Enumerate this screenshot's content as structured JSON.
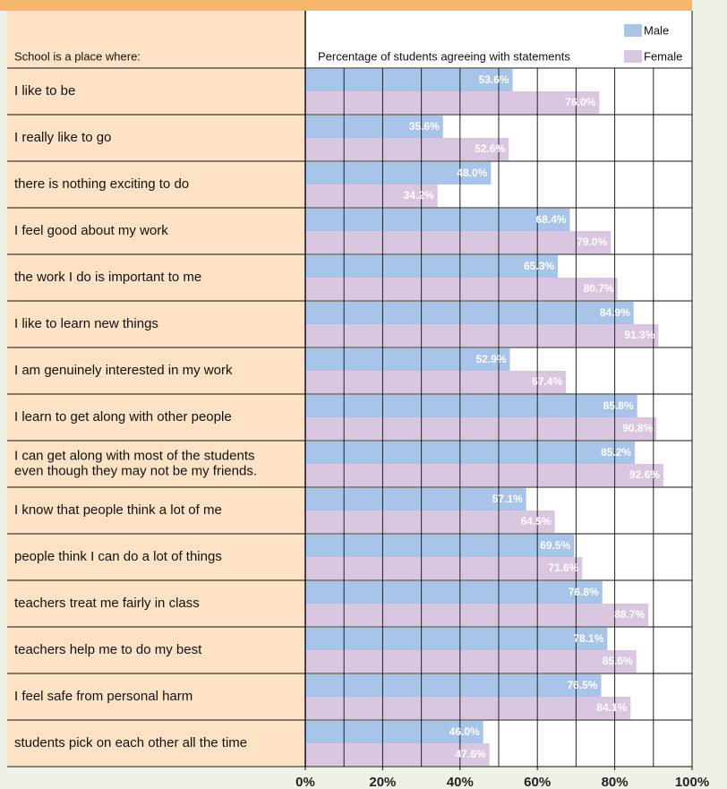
{
  "chart_data": {
    "type": "barh",
    "category_header": "School is a place where:",
    "title": "Percentage of students agreeing with statements",
    "categories": [
      "I like to be",
      "I really like to go",
      "there is nothing exciting to do",
      "I feel good about my work",
      "the work I do is important to me",
      "I like to learn new things",
      "I am genuinely interested in my work",
      "I learn to get along with other people",
      "I can get along with most of the students\neven though they may not be my friends.",
      "I know that people think a lot of me",
      "people think I can do a lot of things",
      "teachers treat me fairly in class",
      "teachers help me to do my best",
      "I feel safe from personal harm",
      "students pick on each other all the time"
    ],
    "series": [
      {
        "name": "Male",
        "color": "#a9c4e9",
        "values": [
          53.6,
          35.6,
          48.0,
          68.4,
          65.3,
          84.9,
          52.9,
          85.8,
          85.2,
          57.1,
          69.5,
          76.8,
          78.1,
          76.5,
          46.0
        ],
        "value_labels": [
          "53.6%",
          "35.6%",
          "48.0%",
          "68.4%",
          "65.3%",
          "84.9%",
          "52.9%",
          "85.8%",
          "85.2%",
          "57.1%",
          "69.5%",
          "76.8%",
          "78.1%",
          "76.5%",
          "46.0%"
        ]
      },
      {
        "name": "Female",
        "color": "#dac6e1",
        "values": [
          76.0,
          52.6,
          34.2,
          79.0,
          80.7,
          91.3,
          67.4,
          90.8,
          92.6,
          64.5,
          71.6,
          88.7,
          85.6,
          84.1,
          47.6
        ],
        "value_labels": [
          "76.0%",
          "52.6%",
          "34.2%",
          "79.0%",
          "80.7%",
          "91.3%",
          "67.4%",
          "90.8%",
          "92.6%",
          "64.5%",
          "71.6%",
          "88.7%",
          "85.6%",
          "84.1%",
          "47.6%"
        ]
      }
    ],
    "xlim": [
      0,
      100
    ],
    "xticks": [
      {
        "value": 0,
        "label": "0%"
      },
      {
        "value": 20,
        "label": "20%"
      },
      {
        "value": 40,
        "label": "40%"
      },
      {
        "value": 60,
        "label": "60%"
      },
      {
        "value": 80,
        "label": "80%"
      },
      {
        "value": 100,
        "label": "100%"
      }
    ],
    "grid_xticks": [
      10,
      20,
      30,
      40,
      50,
      60,
      70,
      80,
      90
    ],
    "grid": true,
    "legend": "top-right"
  }
}
